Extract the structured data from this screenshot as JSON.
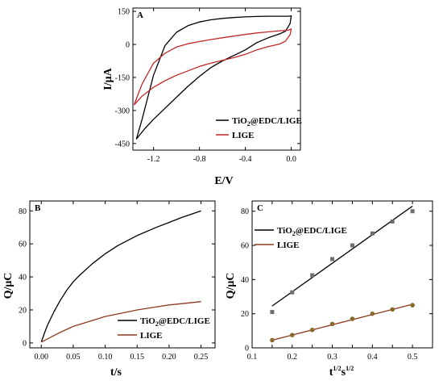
{
  "chart_data": [
    {
      "panel": "A",
      "type": "line",
      "xlabel": "E/V",
      "ylabel": "I/μA",
      "xlim": [
        -1.38,
        0.08
      ],
      "ylim": [
        -480,
        165
      ],
      "xticks": [
        -1.2,
        -0.8,
        -0.4,
        0.0
      ],
      "yticks": [
        150,
        0,
        -150,
        -300,
        -450
      ],
      "xtick_labels": [
        "-1.2",
        "-0.8",
        "-0.4",
        "0.0"
      ],
      "ytick_labels": [
        "150",
        "0",
        "-150",
        "-300",
        "-450"
      ],
      "legend_position": "bottom-right",
      "series": [
        {
          "name": "TiO2@EDC/LIGE",
          "color": "#000000",
          "x": [
            -1.35,
            -1.3,
            -1.25,
            -1.2,
            -1.1,
            -1.0,
            -0.9,
            -0.8,
            -0.7,
            -0.6,
            -0.5,
            -0.4,
            -0.3,
            -0.2,
            -0.1,
            -0.03,
            0.0,
            -0.01,
            -0.05,
            -0.1,
            -0.2,
            -0.3,
            -0.4,
            -0.5,
            -0.6,
            -0.7,
            -0.8,
            -0.9,
            -1.0,
            -1.1,
            -1.2,
            -1.28,
            -1.35
          ],
          "y": [
            -430,
            -340,
            -240,
            -140,
            -5,
            55,
            85,
            102,
            112,
            118,
            122,
            125,
            127,
            128,
            128,
            128,
            130,
            95,
            60,
            48,
            30,
            8,
            -25,
            -50,
            -75,
            -105,
            -145,
            -190,
            -240,
            -290,
            -340,
            -385,
            -430
          ]
        },
        {
          "name": "LIGE",
          "color": "#c0282a",
          "x": [
            -1.37,
            -1.3,
            -1.2,
            -1.1,
            -1.0,
            -0.9,
            -0.8,
            -0.7,
            -0.6,
            -0.5,
            -0.4,
            -0.3,
            -0.2,
            -0.1,
            -0.03,
            0.0,
            -0.01,
            -0.05,
            -0.1,
            -0.2,
            -0.3,
            -0.4,
            -0.5,
            -0.6,
            -0.7,
            -0.8,
            -0.9,
            -1.0,
            -1.1,
            -1.2,
            -1.3,
            -1.37
          ],
          "y": [
            -275,
            -180,
            -85,
            -40,
            -12,
            3,
            13,
            22,
            30,
            38,
            45,
            52,
            57,
            62,
            64,
            70,
            45,
            15,
            2,
            -10,
            -25,
            -45,
            -60,
            -72,
            -85,
            -100,
            -120,
            -140,
            -165,
            -195,
            -235,
            -275
          ]
        }
      ]
    },
    {
      "panel": "B",
      "type": "line",
      "xlabel": "t/s",
      "ylabel": "Q/μC",
      "xlim": [
        -0.018,
        0.272
      ],
      "ylim": [
        -3,
        86
      ],
      "xticks": [
        0.0,
        0.05,
        0.1,
        0.15,
        0.2,
        0.25
      ],
      "yticks": [
        0,
        20,
        40,
        60,
        80
      ],
      "xtick_labels": [
        "0.00",
        "0.05",
        "0.10",
        "0.15",
        "0.20",
        "0.25"
      ],
      "ytick_labels": [
        "0",
        "20",
        "40",
        "60",
        "80"
      ],
      "legend_position": "bottom-right",
      "series": [
        {
          "name": "TiO2@EDC/LIGE",
          "color": "#000000",
          "x": [
            0.0,
            0.005,
            0.01,
            0.02,
            0.03,
            0.04,
            0.05,
            0.06,
            0.08,
            0.1,
            0.12,
            0.15,
            0.18,
            0.2,
            0.22,
            0.25
          ],
          "y": [
            0.5,
            6,
            11,
            19,
            26,
            32,
            37,
            41,
            48,
            54,
            59,
            65,
            70,
            73,
            76,
            80
          ]
        },
        {
          "name": "LIGE",
          "color": "#8b3a1e",
          "x": [
            0.0,
            0.01,
            0.02,
            0.03,
            0.05,
            0.075,
            0.1,
            0.125,
            0.15,
            0.175,
            0.2,
            0.225,
            0.25
          ],
          "y": [
            0.5,
            2.5,
            4.5,
            6.5,
            10,
            13,
            16,
            18,
            20,
            21.5,
            23,
            24,
            25
          ]
        }
      ]
    },
    {
      "panel": "C",
      "type": "scatter",
      "xlabel": "t^1/2s^1/2",
      "ylabel": "Q/μC",
      "xlim": [
        0.1,
        0.55
      ],
      "ylim": [
        0,
        86
      ],
      "xticks": [
        0.1,
        0.15,
        0.2,
        0.25,
        0.3,
        0.35,
        0.4,
        0.45,
        0.5,
        0.55
      ],
      "yticks": [
        0,
        20,
        40,
        60,
        80
      ],
      "xtick_labels": [
        "0.1",
        "0.2",
        "0.3",
        "0.4",
        "0.5"
      ],
      "ytick_labels": [
        "0",
        "20",
        "40",
        "60",
        "80"
      ],
      "legend_position": "top-left",
      "series": [
        {
          "name": "TiO2@EDC/LIGE",
          "color": "#000000",
          "marker_color": "#6e6e6e",
          "x": [
            0.15,
            0.2,
            0.25,
            0.3,
            0.35,
            0.4,
            0.45,
            0.5
          ],
          "y": [
            21,
            32.5,
            42.5,
            52,
            60,
            67,
            74,
            80
          ],
          "fit": {
            "x": [
              0.15,
              0.5
            ],
            "y": [
              24.5,
              83
            ]
          }
        },
        {
          "name": "LIGE",
          "color": "#8b3a1e",
          "marker_color": "#8a6a2a",
          "x": [
            0.15,
            0.2,
            0.25,
            0.3,
            0.35,
            0.4,
            0.45,
            0.5
          ],
          "y": [
            4.5,
            7.5,
            10.5,
            14,
            17,
            20,
            22.5,
            25
          ],
          "fit": {
            "x": [
              0.15,
              0.5
            ],
            "y": [
              4.5,
              25.5
            ]
          }
        }
      ]
    }
  ]
}
